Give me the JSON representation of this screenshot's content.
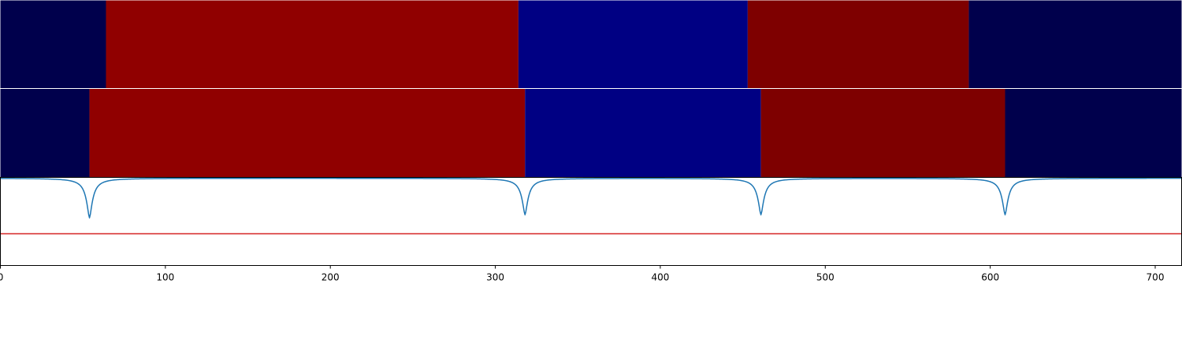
{
  "chart_data": [
    {
      "type": "heatmap",
      "segments": [
        {
          "start": 0,
          "end": 64,
          "color": "#00004c"
        },
        {
          "start": 64,
          "end": 314,
          "color": "#900000"
        },
        {
          "start": 314,
          "end": 453,
          "color": "#000083"
        },
        {
          "start": 453,
          "end": 587,
          "color": "#7e0000"
        },
        {
          "start": 587,
          "end": 716,
          "color": "#00004c"
        }
      ]
    },
    {
      "type": "heatmap",
      "segments": [
        {
          "start": 0,
          "end": 54,
          "color": "#00004c"
        },
        {
          "start": 54,
          "end": 318,
          "color": "#900000"
        },
        {
          "start": 318,
          "end": 461,
          "color": "#000083"
        },
        {
          "start": 461,
          "end": 609,
          "color": "#7e0000"
        },
        {
          "start": 609,
          "end": 716,
          "color": "#00004c"
        }
      ]
    },
    {
      "type": "line",
      "ylim": [
        -1.1,
        0.01
      ],
      "series": [
        {
          "color": "#1f77b4",
          "style": "spiky-dips",
          "baseline": 0,
          "dips": [
            {
              "x": 54,
              "depth": -0.5
            },
            {
              "x": 318,
              "depth": -0.46
            },
            {
              "x": 461,
              "depth": -0.46
            },
            {
              "x": 609,
              "depth": -0.46
            }
          ]
        },
        {
          "color": "#d62728",
          "style": "constant",
          "value": -0.7
        }
      ]
    }
  ],
  "axis": {
    "xlim": [
      0,
      716
    ],
    "xticks": [
      0,
      100,
      200,
      300,
      400,
      500,
      600,
      700
    ],
    "tick_labels": [
      "0",
      "100",
      "200",
      "300",
      "400",
      "500",
      "600",
      "700"
    ]
  }
}
